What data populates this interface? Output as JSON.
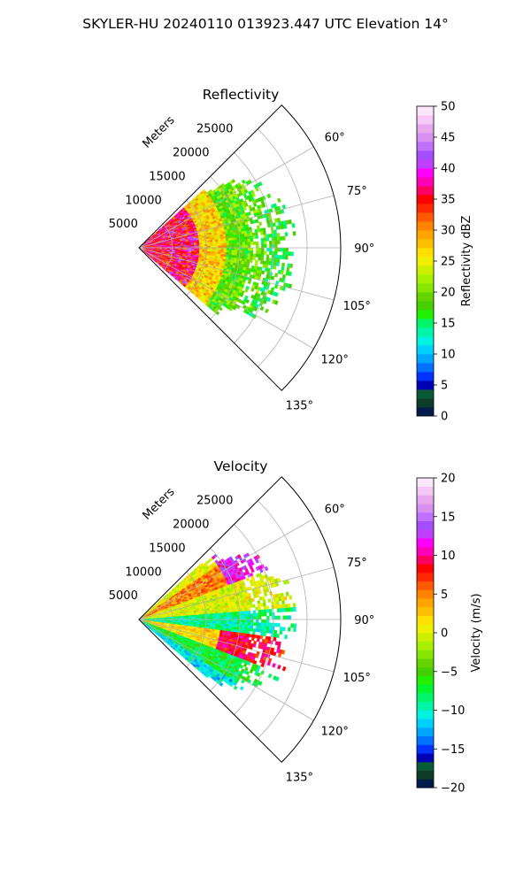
{
  "figure": {
    "suptitle": "SKYLER-HU  20240110  013923.447 UTC Elevation 14°"
  },
  "chart_data": [
    {
      "type": "heatmap",
      "projection": "polar-sector",
      "title": "Reflectivity",
      "range_axis_label": "Meters",
      "range_ticks": [
        5000,
        10000,
        15000,
        20000,
        25000
      ],
      "range_tick_labels": [
        "5000",
        "10000",
        "15000",
        "20000",
        "25000"
      ],
      "range_max_m": 30000,
      "angle_range_deg": [
        45,
        135
      ],
      "angle_ticks_deg": [
        60,
        75,
        90,
        105,
        120,
        135
      ],
      "angle_tick_labels": [
        "60°",
        "75°",
        "90°",
        "105°",
        "120°",
        "135°"
      ],
      "grid": true,
      "colorbar": {
        "label": "Reflectivity dBZ",
        "vmin": 0,
        "vmax": 50,
        "ticks": [
          0,
          5,
          10,
          15,
          20,
          25,
          30,
          35,
          40,
          45,
          50
        ],
        "tick_labels": [
          "0",
          "5",
          "10",
          "15",
          "20",
          "25",
          "30",
          "35",
          "40",
          "45",
          "50"
        ],
        "colors": [
          "#011b4a",
          "#0f3b2a",
          "#0a5a38",
          "#0000b4",
          "#0033ff",
          "#0072ff",
          "#00a5ff",
          "#00d0ff",
          "#00f2e1",
          "#00f5a8",
          "#00f56a",
          "#22f000",
          "#44cf00",
          "#64d400",
          "#86e600",
          "#a6f000",
          "#cdf000",
          "#eef000",
          "#ffe000",
          "#ffc000",
          "#ffa500",
          "#ff8200",
          "#ff5a00",
          "#ff2a00",
          "#ff0000",
          "#ff0060",
          "#ff00b8",
          "#ff00ff",
          "#c040ff",
          "#a64dff",
          "#c070ff",
          "#d890f0",
          "#e8a8f0",
          "#f5c8f5",
          "#fbe6fb"
        ]
      },
      "field_description_by_range_km": [
        {
          "range_km": [
            0,
            9
          ],
          "dominant_dbz": 35
        },
        {
          "range_km": [
            9,
            13
          ],
          "dominant_dbz": 27
        },
        {
          "range_km": [
            13,
            19
          ],
          "dominant_dbz": 19
        },
        {
          "range_km": [
            19,
            23
          ],
          "dominant_dbz": 17
        }
      ],
      "echo_extent_km": 22
    },
    {
      "type": "heatmap",
      "projection": "polar-sector",
      "title": "Velocity",
      "range_axis_label": "Meters",
      "range_ticks": [
        5000,
        10000,
        15000,
        20000,
        25000
      ],
      "range_tick_labels": [
        "5000",
        "10000",
        "15000",
        "20000",
        "25000"
      ],
      "range_max_m": 30000,
      "angle_range_deg": [
        45,
        135
      ],
      "angle_ticks_deg": [
        60,
        75,
        90,
        105,
        120,
        135
      ],
      "angle_tick_labels": [
        "60°",
        "75°",
        "90°",
        "105°",
        "120°",
        "135°"
      ],
      "grid": true,
      "colorbar": {
        "label": "Velocity (m/s)",
        "vmin": -20,
        "vmax": 20,
        "ticks": [
          -20,
          -15,
          -10,
          -5,
          0,
          5,
          10,
          15,
          20
        ],
        "tick_labels": [
          "−20",
          "−15",
          "−10",
          "−5",
          "0",
          "5",
          "10",
          "15",
          "20"
        ],
        "colors": [
          "#011b4a",
          "#0f3b2a",
          "#0a5a38",
          "#0000b4",
          "#0033ff",
          "#0072ff",
          "#00a5ff",
          "#00d0ff",
          "#00f2e1",
          "#00f5a8",
          "#00f56a",
          "#00f530",
          "#22f000",
          "#44cf00",
          "#64d400",
          "#86e600",
          "#a6f000",
          "#cdf000",
          "#eef000",
          "#ffe000",
          "#ffc000",
          "#ffa500",
          "#ff8200",
          "#ff5a00",
          "#ff2a00",
          "#ff0000",
          "#ff0060",
          "#ff00b8",
          "#ff00ff",
          "#c040ff",
          "#a64dff",
          "#c070ff",
          "#d890f0",
          "#e8a8f0",
          "#f5c8f5",
          "#fbe6fb"
        ]
      },
      "field_description_by_angle_deg": [
        {
          "angle_deg": [
            55,
            68
          ],
          "dominant_velocity_ms": 5
        },
        {
          "angle_deg": [
            68,
            85
          ],
          "dominant_velocity_ms": 0
        },
        {
          "angle_deg": [
            85,
            97
          ],
          "dominant_velocity_ms": -9
        },
        {
          "angle_deg": [
            97,
            110
          ],
          "dominant_velocity_ms": 2
        },
        {
          "angle_deg": [
            110,
            122
          ],
          "dominant_velocity_ms": -7
        },
        {
          "angle_deg": [
            122,
            130
          ],
          "dominant_velocity_ms": -11
        }
      ],
      "echo_extent_km": 22
    }
  ]
}
